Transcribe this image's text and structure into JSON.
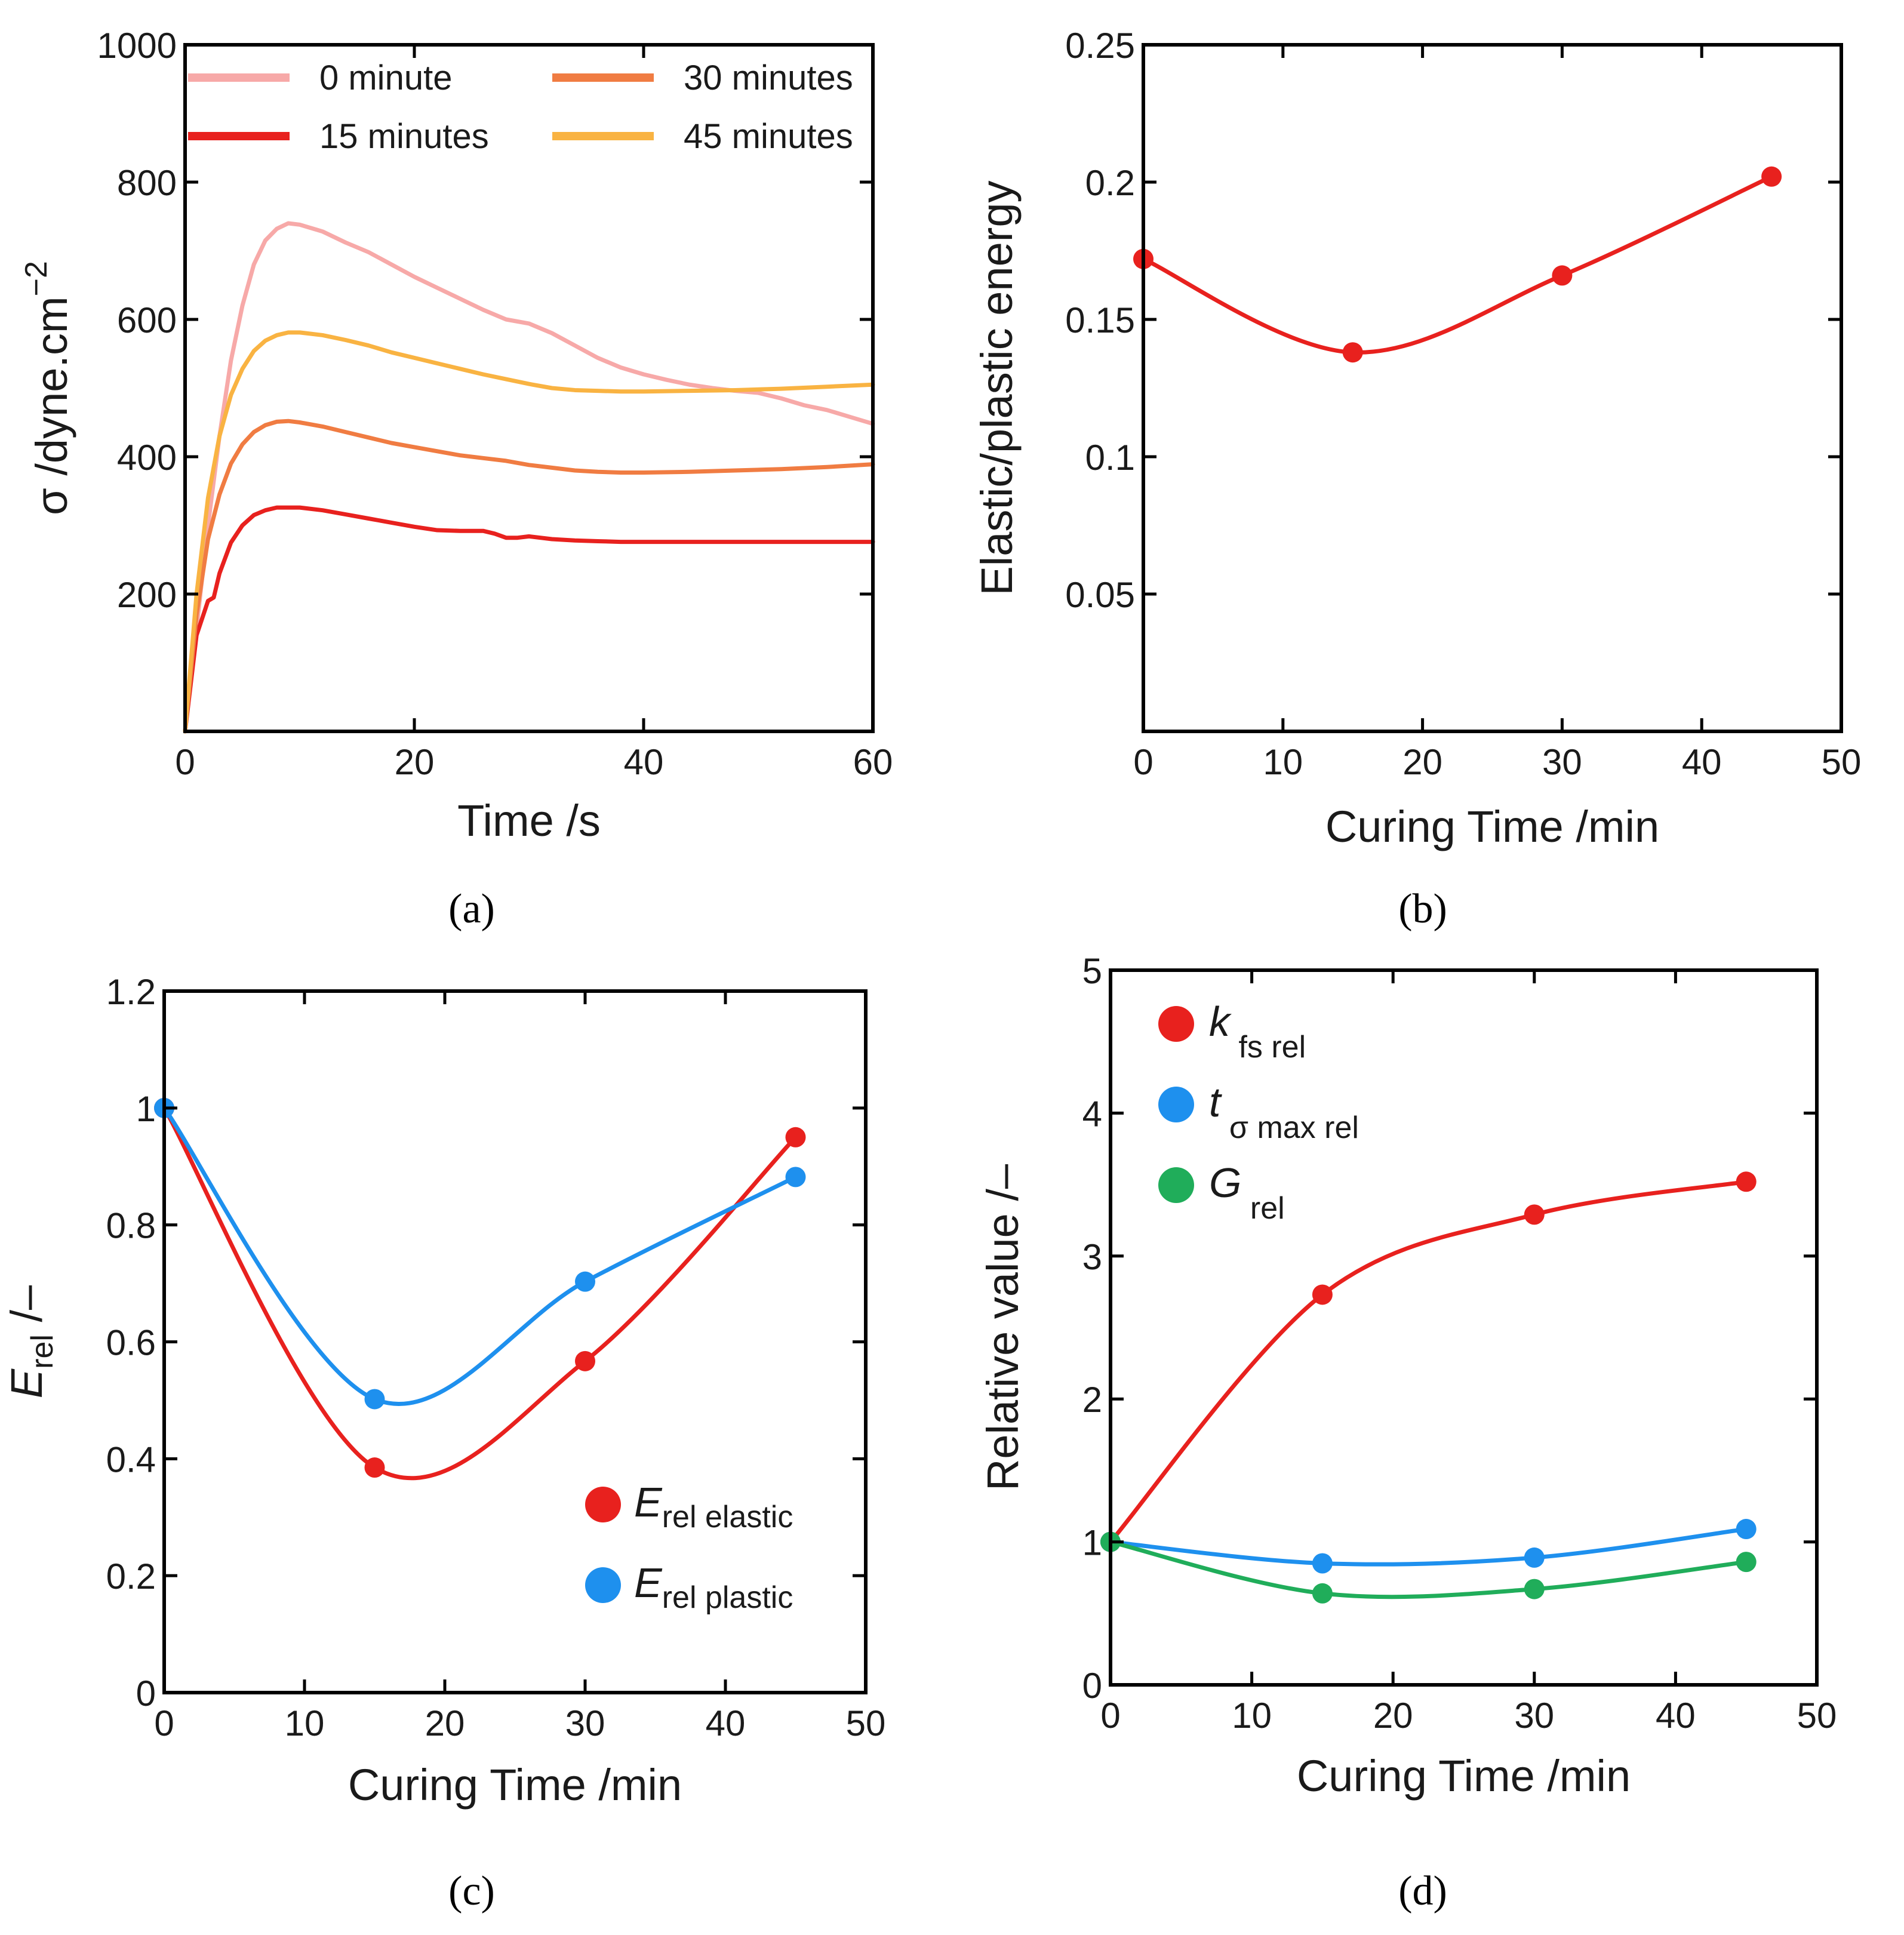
{
  "chart_data": [
    {
      "panel": "a",
      "panel_label": "(a)",
      "type": "line",
      "xlabel": "Time /s",
      "ylabel": "σ /dyne.cm−2",
      "ylabel_main": "σ  /dyne.cm",
      "ylabel_sup": "−2",
      "xlim": [
        0,
        60
      ],
      "ylim": [
        0,
        1000
      ],
      "xticks": [
        0,
        20,
        40,
        60
      ],
      "yticks": [
        200,
        400,
        600,
        800,
        1000
      ],
      "xtick_labels": [
        "0",
        "20",
        "40",
        "60"
      ],
      "ytick_labels": [
        "200",
        "400",
        "600",
        "800",
        "1000"
      ],
      "legend_position": "top",
      "series": [
        {
          "name": "0 minute",
          "color": "#f7a9a8",
          "x": [
            0,
            1,
            2,
            3,
            4,
            5,
            6,
            7,
            8,
            9,
            10,
            12,
            14,
            16,
            18,
            20,
            22,
            24,
            26,
            28,
            30,
            32,
            34,
            36,
            38,
            40,
            42,
            44,
            46,
            48,
            50,
            52,
            54,
            56,
            58,
            60
          ],
          "y": [
            0,
            150,
            300,
            430,
            540,
            620,
            680,
            715,
            732,
            740,
            738,
            728,
            712,
            698,
            680,
            662,
            646,
            630,
            614,
            600,
            594,
            580,
            562,
            544,
            530,
            520,
            512,
            505,
            500,
            496,
            493,
            485,
            475,
            468,
            458,
            448
          ]
        },
        {
          "name": "15 minutes",
          "color": "#e8211e",
          "x": [
            0,
            1,
            2,
            2.5,
            3,
            4,
            5,
            6,
            7,
            8,
            10,
            12,
            14,
            16,
            18,
            20,
            22,
            24,
            26,
            27,
            28,
            29,
            30,
            32,
            34,
            36,
            38,
            40,
            45,
            50,
            55,
            60
          ],
          "y": [
            0,
            140,
            190,
            195,
            230,
            275,
            300,
            315,
            322,
            326,
            326,
            322,
            316,
            310,
            304,
            298,
            293,
            292,
            292,
            288,
            282,
            282,
            284,
            280,
            278,
            277,
            276,
            276,
            276,
            276,
            276,
            276
          ]
        },
        {
          "name": "30 minutes",
          "color": "#f07c42",
          "x": [
            0,
            1,
            2,
            3,
            4,
            5,
            6,
            7,
            8,
            9,
            10,
            12,
            14,
            16,
            18,
            20,
            22,
            24,
            26,
            28,
            30,
            32,
            34,
            36,
            38,
            40,
            44,
            48,
            52,
            56,
            60
          ],
          "y": [
            0,
            170,
            280,
            345,
            390,
            418,
            436,
            446,
            451,
            452,
            450,
            444,
            436,
            428,
            420,
            414,
            408,
            402,
            398,
            394,
            388,
            384,
            380,
            378,
            377,
            377,
            378,
            380,
            382,
            385,
            389
          ]
        },
        {
          "name": "45 minutes",
          "color": "#f9b342",
          "x": [
            0,
            1,
            2,
            3,
            4,
            5,
            6,
            7,
            8,
            9,
            10,
            12,
            14,
            16,
            18,
            20,
            22,
            24,
            26,
            28,
            30,
            32,
            34,
            36,
            38,
            40,
            44,
            48,
            52,
            56,
            60
          ],
          "y": [
            0,
            200,
            340,
            430,
            490,
            528,
            554,
            569,
            577,
            581,
            581,
            577,
            570,
            562,
            552,
            544,
            536,
            528,
            520,
            513,
            506,
            500,
            497,
            496,
            495,
            495,
            496,
            497,
            499,
            502,
            505
          ]
        }
      ]
    },
    {
      "panel": "b",
      "panel_label": "(b)",
      "type": "line",
      "xlabel": "Curing Time /min",
      "ylabel": "Elastic/plastic energy",
      "xlim": [
        0,
        50
      ],
      "ylim": [
        0,
        0.25
      ],
      "xticks": [
        0,
        10,
        20,
        30,
        40,
        50
      ],
      "yticks": [
        0.05,
        0.1,
        0.15,
        0.2,
        0.25
      ],
      "xtick_labels": [
        "0",
        "10",
        "20",
        "30",
        "40",
        "50"
      ],
      "ytick_labels": [
        "0.05",
        "0.1",
        "0.15",
        "0.2",
        "0.25"
      ],
      "series": [
        {
          "name": "Elastic/plastic energy",
          "color": "#e8211e",
          "x": [
            0,
            15,
            30,
            45
          ],
          "y": [
            0.172,
            0.138,
            0.166,
            0.202
          ]
        }
      ]
    },
    {
      "panel": "c",
      "panel_label": "(c)",
      "type": "line",
      "xlabel": "Curing Time /min",
      "ylabel": "Erel /–",
      "ylabel_main": "E",
      "ylabel_sub": "rel",
      "ylabel_unit": " /–",
      "xlim": [
        0,
        50
      ],
      "ylim": [
        0,
        1.2
      ],
      "xticks": [
        0,
        10,
        20,
        30,
        40,
        50
      ],
      "yticks": [
        0,
        0.2,
        0.4,
        0.6,
        0.8,
        1,
        1.2
      ],
      "xtick_labels": [
        "0",
        "10",
        "20",
        "30",
        "40",
        "50"
      ],
      "ytick_labels": [
        "0",
        "0.2",
        "0.4",
        "0.6",
        "0.8",
        "1",
        "1.2"
      ],
      "legend_position": "bottom-right",
      "series": [
        {
          "name": "Erel elastic",
          "main": "E",
          "sub": "rel elastic",
          "color": "#e8211e",
          "x": [
            0,
            15,
            30,
            45
          ],
          "y": [
            1.0,
            0.385,
            0.567,
            0.95
          ]
        },
        {
          "name": "Erel plastic",
          "main": "E",
          "sub": "rel plastic",
          "color": "#1e90ee",
          "x": [
            0,
            15,
            30,
            45
          ],
          "y": [
            1.0,
            0.502,
            0.703,
            0.882
          ]
        }
      ]
    },
    {
      "panel": "d",
      "panel_label": "(d)",
      "type": "line",
      "xlabel": "Curing Time /min",
      "ylabel": "Relative value /–",
      "xlim": [
        0,
        50
      ],
      "ylim": [
        0,
        5
      ],
      "xticks": [
        0,
        10,
        20,
        30,
        40,
        50
      ],
      "yticks": [
        0,
        1,
        2,
        3,
        4,
        5
      ],
      "xtick_labels": [
        "0",
        "10",
        "20",
        "30",
        "40",
        "50"
      ],
      "ytick_labels": [
        "0",
        "1",
        "2",
        "3",
        "4",
        "5"
      ],
      "legend_position": "top-left",
      "series": [
        {
          "name": "kfs rel",
          "main": "k",
          "sub": "fs rel",
          "color": "#e8211e",
          "x": [
            0,
            15,
            30,
            45
          ],
          "y": [
            1.0,
            2.73,
            3.29,
            3.52
          ]
        },
        {
          "name": "tσ max rel",
          "main": "t",
          "sub": "σ max rel",
          "color": "#1e90ee",
          "x": [
            0,
            15,
            30,
            45
          ],
          "y": [
            1.0,
            0.85,
            0.89,
            1.09
          ]
        },
        {
          "name": "Grel",
          "main": "G",
          "sub": "rel",
          "color": "#20ad5a",
          "x": [
            0,
            15,
            30,
            45
          ],
          "y": [
            1.0,
            0.64,
            0.67,
            0.86
          ]
        }
      ]
    }
  ]
}
